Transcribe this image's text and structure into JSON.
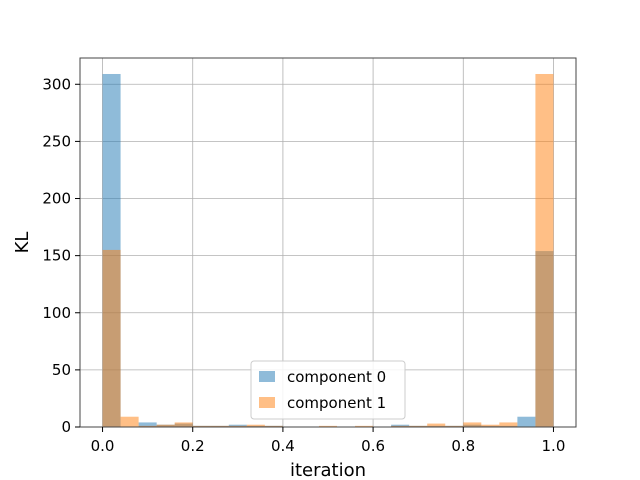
{
  "chart_data": {
    "type": "bar",
    "subtype": "overlaid-histogram",
    "title": "",
    "xlabel": "iteration",
    "ylabel": "KL",
    "xlim": [
      -0.05,
      1.05
    ],
    "ylim": [
      0,
      323
    ],
    "xticks": [
      "0.0",
      "0.2",
      "0.4",
      "0.6",
      "0.8",
      "1.0"
    ],
    "yticks": [
      "0",
      "50",
      "100",
      "150",
      "200",
      "250",
      "300"
    ],
    "grid": true,
    "legend_position": "lower center",
    "bins": {
      "start": 0.0,
      "end": 1.0,
      "count": 25
    },
    "series": [
      {
        "name": "component 0",
        "color": "#1f77b4",
        "alpha": 0.5,
        "values": [
          309,
          0,
          4,
          2,
          3,
          1,
          1,
          2,
          1,
          1,
          0,
          0,
          0,
          0,
          0,
          0,
          2,
          1,
          1,
          1,
          2,
          1,
          1,
          9,
          154
        ]
      },
      {
        "name": "component 1",
        "color": "#ff7f0e",
        "alpha": 0.5,
        "values": [
          155,
          9,
          1,
          2,
          4,
          1,
          1,
          1,
          2,
          1,
          0,
          0,
          1,
          0,
          1,
          0,
          1,
          1,
          3,
          1,
          4,
          2,
          4,
          0,
          309
        ]
      }
    ]
  }
}
